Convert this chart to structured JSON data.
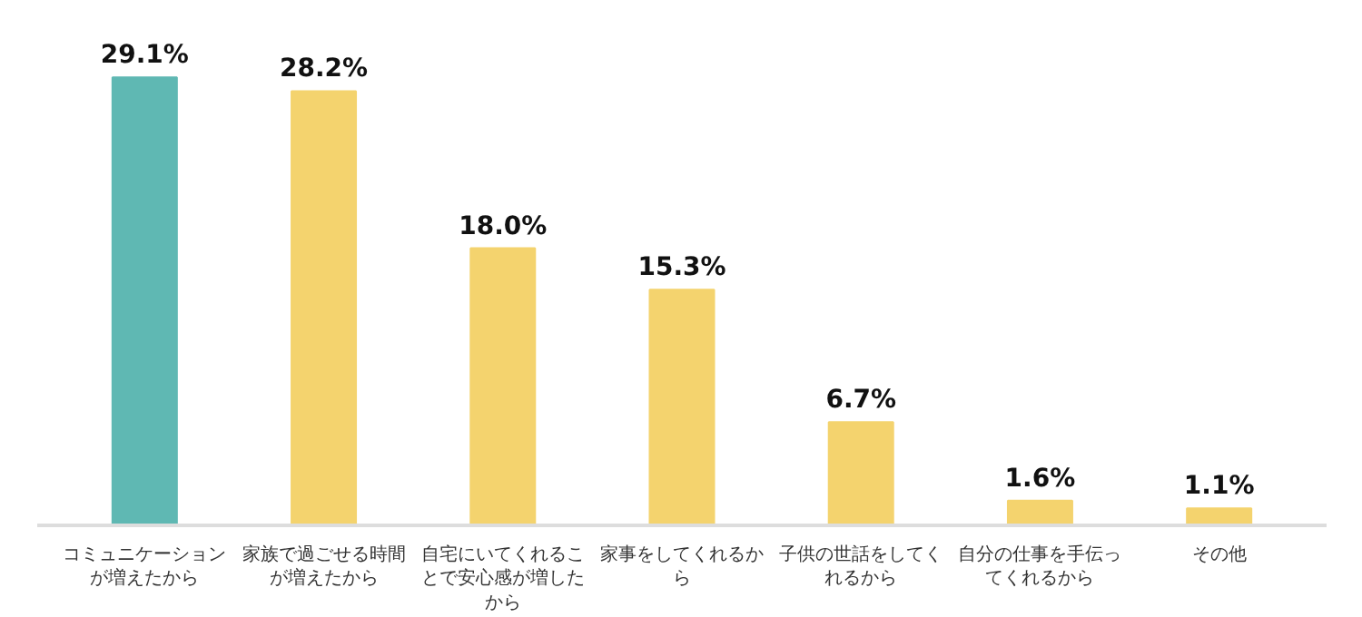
{
  "chart_data": {
    "type": "bar",
    "categories": [
      "コミュニケーションが増えたから",
      "家族で過ごせる時間が増えたから",
      "自宅にいてくれることで安心感が増したから",
      "家事をしてくれるから",
      "子供の世話をしてくれるから",
      "自分の仕事を手伝ってくれるから",
      "その他"
    ],
    "values": [
      29.1,
      28.2,
      18.0,
      15.3,
      6.7,
      1.6,
      1.1
    ],
    "colors": [
      "#5fb8b3",
      "#f4d36e",
      "#f4d36e",
      "#f4d36e",
      "#f4d36e",
      "#f4d36e",
      "#f4d36e"
    ],
    "value_labels": [
      "29.1%",
      "28.2%",
      "18.0%",
      "15.3%",
      "6.7%",
      "1.6%",
      "1.1%"
    ],
    "grid": false,
    "tick_labels": "x"
  }
}
